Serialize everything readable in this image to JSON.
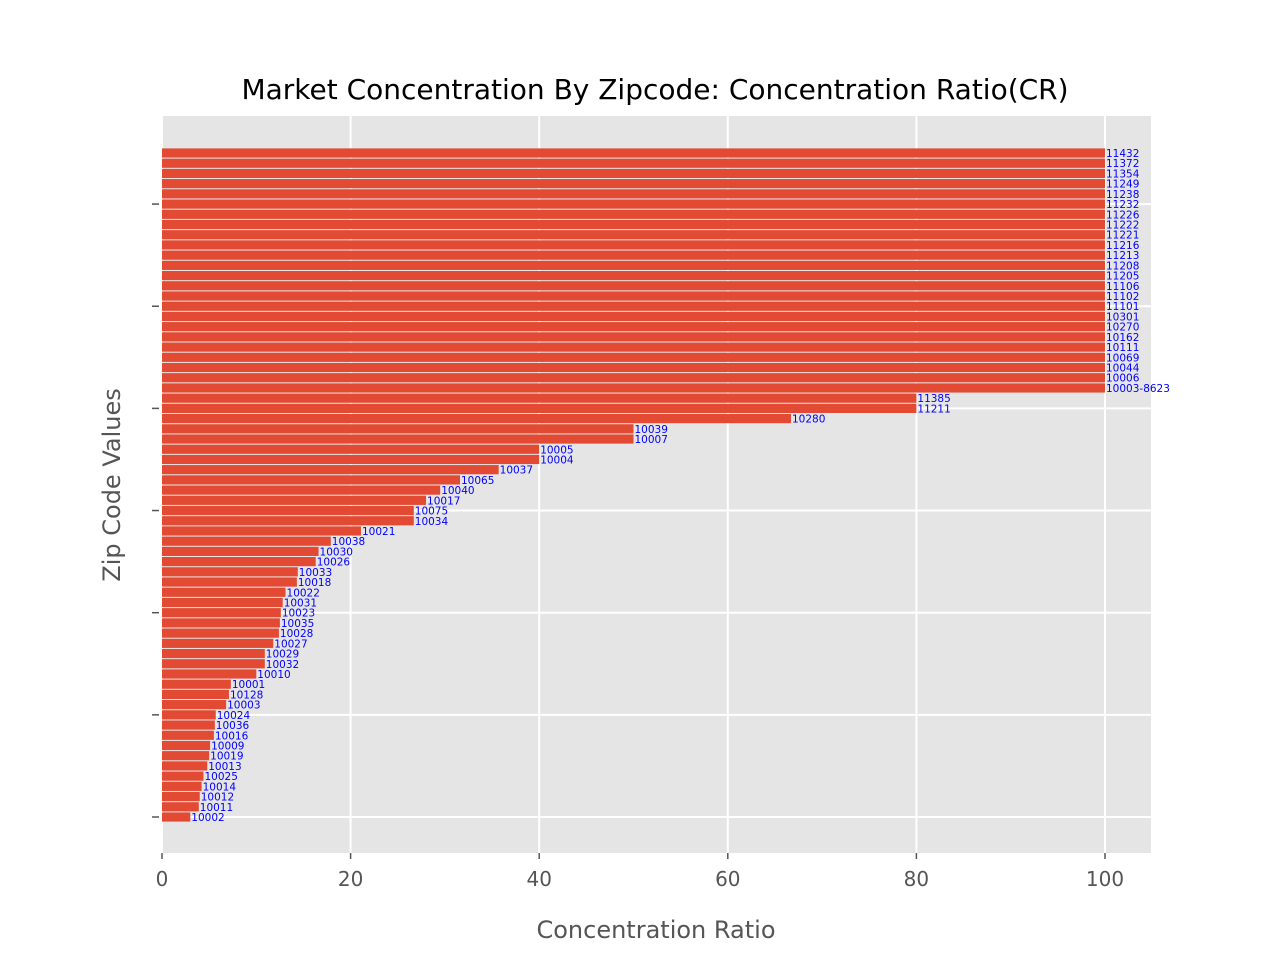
{
  "chart_data": {
    "type": "bar",
    "orientation": "horizontal",
    "title": "Market Concentration By Zipcode: Concentration Ratio(CR)",
    "xlabel": "Concentration Ratio",
    "ylabel": "Zip Code Values",
    "xlim": [
      0,
      105
    ],
    "xticks": [
      "0",
      "20",
      "40",
      "60",
      "80",
      "100"
    ],
    "grid": true,
    "background": "#e5e5e5",
    "bar_color": "#e24a33",
    "label_color": "#0000ff",
    "categories": [
      "10002",
      "10011",
      "10012",
      "10014",
      "10025",
      "10013",
      "10019",
      "10009",
      "10016",
      "10036",
      "10024",
      "10003",
      "10128",
      "10001",
      "10010",
      "10032",
      "10029",
      "10027",
      "10028",
      "10035",
      "10023",
      "10031",
      "10022",
      "10018",
      "10033",
      "10026",
      "10030",
      "10038",
      "10021",
      "10034",
      "10075",
      "10017",
      "10040",
      "10065",
      "10037",
      "10004",
      "10005",
      "10007",
      "10039",
      "10280",
      "11211",
      "11385",
      "10003-8623",
      "10006",
      "10044",
      "10069",
      "10111",
      "10162",
      "10270",
      "10301",
      "11101",
      "11102",
      "11106",
      "11205",
      "11208",
      "11213",
      "11216",
      "11221",
      "11222",
      "11226",
      "11232",
      "11238",
      "11249",
      "11354",
      "11372",
      "11432"
    ],
    "values": [
      3.0,
      3.9,
      4.0,
      4.2,
      4.4,
      4.8,
      5.0,
      5.1,
      5.5,
      5.6,
      5.7,
      6.8,
      7.1,
      7.3,
      10.0,
      10.9,
      10.9,
      11.8,
      12.4,
      12.5,
      12.6,
      12.8,
      13.1,
      14.3,
      14.4,
      16.3,
      16.6,
      17.9,
      21.1,
      26.7,
      26.7,
      28.0,
      29.5,
      31.6,
      35.7,
      40.0,
      40.0,
      50.0,
      50.0,
      66.7,
      80.0,
      80.0,
      100,
      100,
      100,
      100,
      100,
      100,
      100,
      100,
      100,
      100,
      100,
      100,
      100,
      100,
      100,
      100,
      100,
      100,
      100,
      100,
      100,
      100,
      100,
      100
    ]
  }
}
